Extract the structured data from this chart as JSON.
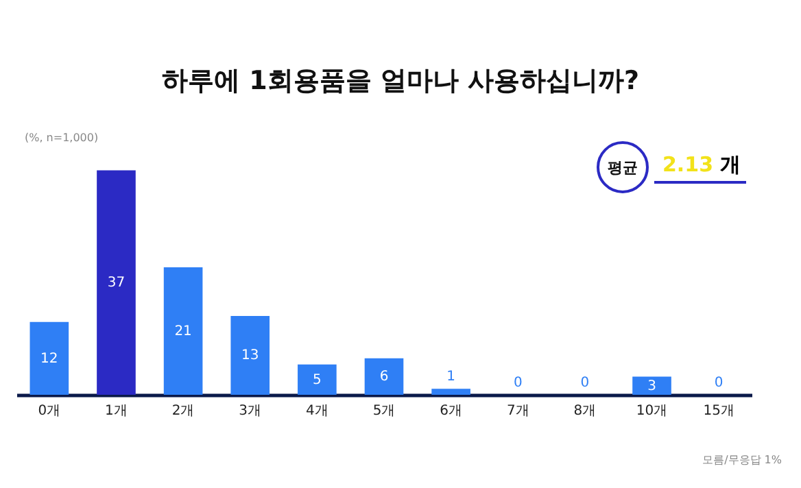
{
  "chart_data": {
    "type": "bar",
    "title": "하루에 1회용품을 얼마나 사용하십니까?",
    "categories": [
      "0개",
      "1개",
      "2개",
      "3개",
      "4개",
      "5개",
      "6개",
      "7개",
      "8개",
      "10개",
      "15개"
    ],
    "values": [
      12,
      37,
      21,
      13,
      5,
      6,
      1,
      0,
      0,
      3,
      0
    ],
    "colors": [
      "#2f7ff5",
      "#2b2ac4",
      "#2f7ff5",
      "#2f7ff5",
      "#2f7ff5",
      "#2f7ff5",
      "#2f7ff5",
      "#2f7ff5",
      "#2f7ff5",
      "#2f7ff5",
      "#2f7ff5"
    ],
    "data_labels": true,
    "annotations": [
      "(%, n=1,000)",
      "평균",
      "2.13 개",
      "모름/무응답 1%"
    ]
  }
}
